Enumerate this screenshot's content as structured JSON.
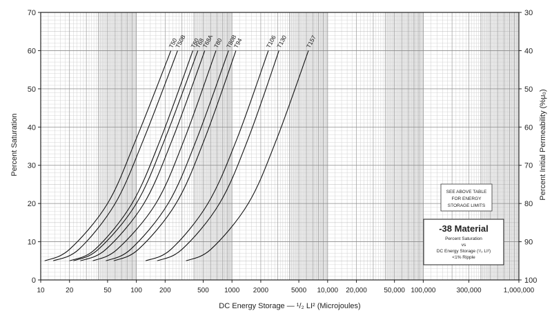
{
  "chart_data": {
    "type": "line",
    "xlabel": "DC Energy Storage — ¹/₂ LI² (Microjoules)",
    "ylabel": "Percent Saturation",
    "y2label": "Percent Initial Permeability (%μ₀)",
    "xscale": "log",
    "xlim": [
      10,
      1000000
    ],
    "ylim": [
      0,
      70
    ],
    "x_ticks": [
      10,
      20,
      50,
      100,
      200,
      500,
      1000,
      2000,
      5000,
      10000,
      20000,
      50000,
      100000,
      300000,
      1000000
    ],
    "x_tick_labels": [
      "10",
      "20",
      "50",
      "100",
      "200",
      "500",
      "1000",
      "2000",
      "5000",
      "10,000",
      "20,000",
      "50,000",
      "100,000",
      "300,000",
      "1,000,000"
    ],
    "y_ticks": [
      0,
      10,
      20,
      30,
      40,
      50,
      60,
      70
    ],
    "y_tick_labels": [
      "0",
      "10",
      "20",
      "30",
      "40",
      "50",
      "60",
      "70"
    ],
    "y2_ticks": [
      30,
      40,
      50,
      60,
      70,
      80,
      90,
      100
    ],
    "y2_tick_labels": [
      "30",
      "40",
      "50",
      "60",
      "70",
      "80",
      "90",
      "100"
    ],
    "grid": true,
    "series": [
      {
        "name": "T50",
        "x": [
          11,
          20,
          50,
          100,
          230
        ],
        "y": [
          5,
          8,
          20,
          37,
          60
        ]
      },
      {
        "name": "T50B",
        "x": [
          13.5,
          25,
          60,
          120,
          270
        ],
        "y": [
          5,
          8,
          20,
          37,
          60
        ]
      },
      {
        "name": "T60",
        "x": [
          20,
          37,
          90,
          180,
          390
        ],
        "y": [
          5,
          8,
          20,
          37,
          60
        ]
      },
      {
        "name": "T68",
        "x": [
          22,
          40,
          100,
          200,
          440
        ],
        "y": [
          5,
          8,
          20,
          37,
          60
        ]
      },
      {
        "name": "T68A",
        "x": [
          26,
          48,
          120,
          240,
          520
        ],
        "y": [
          5,
          8,
          20,
          37,
          60
        ]
      },
      {
        "name": "T80",
        "x": [
          35,
          63,
          160,
          320,
          680
        ],
        "y": [
          5,
          8,
          20,
          37,
          60
        ]
      },
      {
        "name": "T80B",
        "x": [
          48,
          87,
          215,
          430,
          920
        ],
        "y": [
          5,
          8,
          20,
          37,
          60
        ]
      },
      {
        "name": "T94",
        "x": [
          58,
          105,
          260,
          520,
          1100
        ],
        "y": [
          5,
          8,
          20,
          37,
          60
        ]
      },
      {
        "name": "T106",
        "x": [
          125,
          230,
          560,
          1130,
          2400
        ],
        "y": [
          5,
          8,
          20,
          37,
          60
        ]
      },
      {
        "name": "T130",
        "x": [
          165,
          300,
          740,
          1480,
          3100
        ],
        "y": [
          5,
          8,
          20,
          37,
          60
        ]
      },
      {
        "name": "T157",
        "x": [
          330,
          600,
          1480,
          2950,
          6300
        ],
        "y": [
          5,
          8,
          20,
          37,
          60
        ]
      }
    ],
    "annotations": {
      "note_lines": [
        "SEE ABOVE TABLE",
        "FOR ENERGY",
        "STORAGE LIMITS"
      ],
      "material_title": "-38 Material",
      "material_lines": [
        "Percent Saturation",
        "vs",
        "DC Energy Storage (¹/₂ LI²)",
        "<1% Ripple"
      ]
    }
  }
}
